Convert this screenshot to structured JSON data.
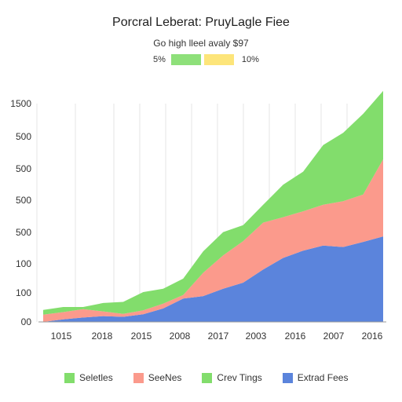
{
  "chart_data": {
    "type": "area",
    "stacked": true,
    "title": "Porcral Leberat: PruyLagle Fiee",
    "subtitle": "Go high lleel avaly $97",
    "top_legend": {
      "left_label": "5%",
      "right_label": "10%",
      "colors": [
        "#8ee07a",
        "#fde57a"
      ]
    },
    "y_tick_labels": [
      "00",
      "100",
      "100",
      "500",
      "500",
      "500",
      "500",
      "1500"
    ],
    "x_tick_labels": [
      "1015",
      "2018",
      "2015",
      "2008",
      "2017",
      "2003",
      "2016",
      "2007",
      "2016"
    ],
    "grid": "vertical",
    "x_positions": [
      0,
      0.5,
      1,
      1.5,
      2,
      2.5,
      3,
      3.5,
      4,
      4.5,
      5,
      5.5,
      6,
      6.5,
      7,
      7.5,
      8,
      8.5
    ],
    "series": [
      {
        "name": "Extrad Fees",
        "color": "#5b84dc",
        "values": [
          0,
          7,
          12,
          16,
          14,
          21,
          37,
          64,
          71,
          91,
          108,
          144,
          176,
          196,
          210,
          206,
          220,
          235
        ]
      },
      {
        "name": "SeeNes",
        "color": "#fb9a8c",
        "values": [
          20,
          20,
          23,
          13,
          8,
          11,
          13,
          10,
          64,
          92,
          114,
          129,
          112,
          108,
          112,
          126,
          130,
          212
        ]
      },
      {
        "name": "Crev Tings",
        "color": "#82dd6c",
        "values": [
          13,
          14,
          6,
          23,
          33,
          50,
          41,
          45,
          59,
          64,
          44,
          49,
          89,
          109,
          164,
          188,
          222,
          188
        ]
      }
    ],
    "legend": [
      "Seletles",
      "SeeNes",
      "Crev Tings",
      "Extrad Fees"
    ],
    "legend_colors": [
      "#82dd6c",
      "#fb9a8c",
      "#82dd6c",
      "#5b84dc"
    ],
    "legend_position": "bottom"
  }
}
